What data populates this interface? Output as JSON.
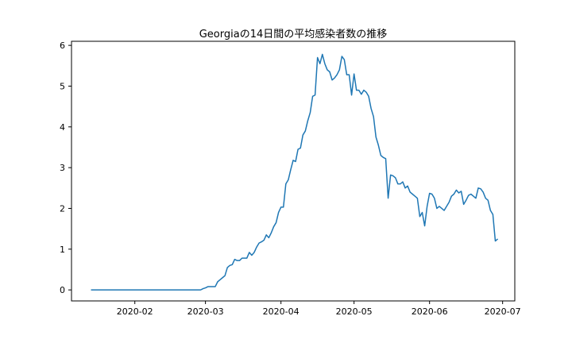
{
  "chart_data": {
    "type": "line",
    "title": "Georgiaの14日間の平均感染者数の推移",
    "xlabel": "",
    "ylabel": "",
    "xlim": [
      "2020-01-06",
      "2020-07-06"
    ],
    "ylim": [
      -0.27,
      6.1
    ],
    "grid": false,
    "line_color": "#1f77b4",
    "x_ticks": [
      "2020-02",
      "2020-03",
      "2020-04",
      "2020-05",
      "2020-06",
      "2020-07"
    ],
    "x_tick_dates": [
      "2020-02-01",
      "2020-03-01",
      "2020-04-01",
      "2020-05-01",
      "2020-06-01",
      "2020-07-01"
    ],
    "y_ticks": [
      0,
      1,
      2,
      3,
      4,
      5,
      6
    ],
    "series": [
      {
        "points": [
          [
            "2020-01-14",
            0.0
          ],
          [
            "2020-02-28",
            0.0
          ],
          [
            "2020-02-29",
            0.03
          ],
          [
            "2020-03-01",
            0.05
          ],
          [
            "2020-03-02",
            0.08
          ],
          [
            "2020-03-03",
            0.08
          ],
          [
            "2020-03-04",
            0.08
          ],
          [
            "2020-03-05",
            0.08
          ],
          [
            "2020-03-06",
            0.2
          ],
          [
            "2020-03-07",
            0.25
          ],
          [
            "2020-03-08",
            0.3
          ],
          [
            "2020-03-09",
            0.35
          ],
          [
            "2020-03-10",
            0.55
          ],
          [
            "2020-03-11",
            0.6
          ],
          [
            "2020-03-12",
            0.62
          ],
          [
            "2020-03-13",
            0.75
          ],
          [
            "2020-03-14",
            0.72
          ],
          [
            "2020-03-15",
            0.72
          ],
          [
            "2020-03-16",
            0.78
          ],
          [
            "2020-03-17",
            0.78
          ],
          [
            "2020-03-18",
            0.78
          ],
          [
            "2020-03-19",
            0.92
          ],
          [
            "2020-03-20",
            0.85
          ],
          [
            "2020-03-21",
            0.92
          ],
          [
            "2020-03-22",
            1.05
          ],
          [
            "2020-03-23",
            1.15
          ],
          [
            "2020-03-24",
            1.18
          ],
          [
            "2020-03-25",
            1.22
          ],
          [
            "2020-03-26",
            1.35
          ],
          [
            "2020-03-27",
            1.28
          ],
          [
            "2020-03-28",
            1.4
          ],
          [
            "2020-03-29",
            1.55
          ],
          [
            "2020-03-30",
            1.65
          ],
          [
            "2020-03-31",
            1.9
          ],
          [
            "2020-04-01",
            2.03
          ],
          [
            "2020-04-02",
            2.03
          ],
          [
            "2020-04-03",
            2.6
          ],
          [
            "2020-04-04",
            2.7
          ],
          [
            "2020-04-05",
            2.95
          ],
          [
            "2020-04-06",
            3.18
          ],
          [
            "2020-04-07",
            3.15
          ],
          [
            "2020-04-08",
            3.45
          ],
          [
            "2020-04-09",
            3.48
          ],
          [
            "2020-04-10",
            3.8
          ],
          [
            "2020-04-11",
            3.9
          ],
          [
            "2020-04-12",
            4.15
          ],
          [
            "2020-04-13",
            4.35
          ],
          [
            "2020-04-14",
            4.75
          ],
          [
            "2020-04-15",
            4.78
          ],
          [
            "2020-04-16",
            5.7
          ],
          [
            "2020-04-17",
            5.55
          ],
          [
            "2020-04-18",
            5.78
          ],
          [
            "2020-04-19",
            5.55
          ],
          [
            "2020-04-20",
            5.4
          ],
          [
            "2020-04-21",
            5.35
          ],
          [
            "2020-04-22",
            5.15
          ],
          [
            "2020-04-23",
            5.2
          ],
          [
            "2020-04-24",
            5.28
          ],
          [
            "2020-04-25",
            5.4
          ],
          [
            "2020-04-26",
            5.73
          ],
          [
            "2020-04-27",
            5.65
          ],
          [
            "2020-04-28",
            5.28
          ],
          [
            "2020-04-29",
            5.28
          ],
          [
            "2020-04-30",
            4.78
          ],
          [
            "2020-05-01",
            5.3
          ],
          [
            "2020-05-02",
            4.9
          ],
          [
            "2020-05-03",
            4.9
          ],
          [
            "2020-05-04",
            4.8
          ],
          [
            "2020-05-05",
            4.9
          ],
          [
            "2020-05-06",
            4.85
          ],
          [
            "2020-05-07",
            4.75
          ],
          [
            "2020-05-08",
            4.45
          ],
          [
            "2020-05-09",
            4.25
          ],
          [
            "2020-05-10",
            3.75
          ],
          [
            "2020-05-11",
            3.55
          ],
          [
            "2020-05-12",
            3.3
          ],
          [
            "2020-05-13",
            3.25
          ],
          [
            "2020-05-14",
            3.22
          ],
          [
            "2020-05-15",
            2.25
          ],
          [
            "2020-05-16",
            2.82
          ],
          [
            "2020-05-17",
            2.8
          ],
          [
            "2020-05-18",
            2.75
          ],
          [
            "2020-05-19",
            2.6
          ],
          [
            "2020-05-20",
            2.6
          ],
          [
            "2020-05-21",
            2.65
          ],
          [
            "2020-05-22",
            2.5
          ],
          [
            "2020-05-23",
            2.55
          ],
          [
            "2020-05-24",
            2.4
          ],
          [
            "2020-05-25",
            2.35
          ],
          [
            "2020-05-26",
            2.3
          ],
          [
            "2020-05-27",
            2.25
          ],
          [
            "2020-05-28",
            1.8
          ],
          [
            "2020-05-29",
            1.9
          ],
          [
            "2020-05-30",
            1.57
          ],
          [
            "2020-05-31",
            2.05
          ],
          [
            "2020-06-01",
            2.37
          ],
          [
            "2020-06-02",
            2.35
          ],
          [
            "2020-06-03",
            2.25
          ],
          [
            "2020-06-04",
            2.0
          ],
          [
            "2020-06-05",
            2.05
          ],
          [
            "2020-06-06",
            2.0
          ],
          [
            "2020-06-07",
            1.95
          ],
          [
            "2020-06-08",
            2.05
          ],
          [
            "2020-06-09",
            2.15
          ],
          [
            "2020-06-10",
            2.3
          ],
          [
            "2020-06-11",
            2.35
          ],
          [
            "2020-06-12",
            2.45
          ],
          [
            "2020-06-13",
            2.38
          ],
          [
            "2020-06-14",
            2.42
          ],
          [
            "2020-06-15",
            2.1
          ],
          [
            "2020-06-16",
            2.2
          ],
          [
            "2020-06-17",
            2.32
          ],
          [
            "2020-06-18",
            2.35
          ],
          [
            "2020-06-19",
            2.3
          ],
          [
            "2020-06-20",
            2.25
          ],
          [
            "2020-06-21",
            2.5
          ],
          [
            "2020-06-22",
            2.48
          ],
          [
            "2020-06-23",
            2.4
          ],
          [
            "2020-06-24",
            2.25
          ],
          [
            "2020-06-25",
            2.2
          ],
          [
            "2020-06-26",
            1.95
          ],
          [
            "2020-06-27",
            1.85
          ],
          [
            "2020-06-28",
            1.2
          ],
          [
            "2020-06-29",
            1.25
          ]
        ]
      }
    ]
  }
}
